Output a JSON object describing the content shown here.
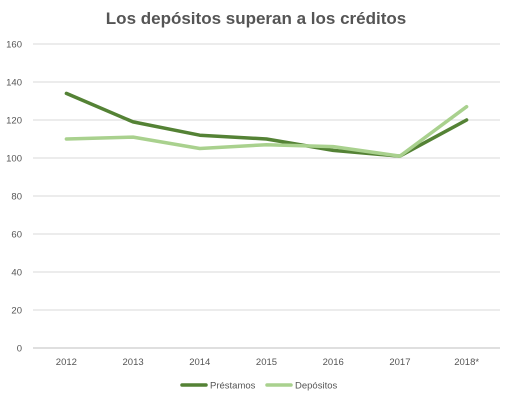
{
  "chart_data": {
    "type": "line",
    "title": "Los depósitos superan a los créditos",
    "categories": [
      "2012",
      "2013",
      "2014",
      "2015",
      "2016",
      "2017",
      "2018*"
    ],
    "ylim": [
      0,
      160
    ],
    "yticks": [
      0,
      20,
      40,
      60,
      80,
      100,
      120,
      140,
      160
    ],
    "grid": true,
    "legend_position": "bottom",
    "series": [
      {
        "name": "Préstamos",
        "color": "#548235",
        "values": [
          134,
          119,
          112,
          110,
          104,
          101,
          120
        ]
      },
      {
        "name": "Depósitos",
        "color": "#a9d18e",
        "values": [
          110,
          111,
          105,
          107,
          106,
          101,
          127
        ]
      }
    ]
  }
}
